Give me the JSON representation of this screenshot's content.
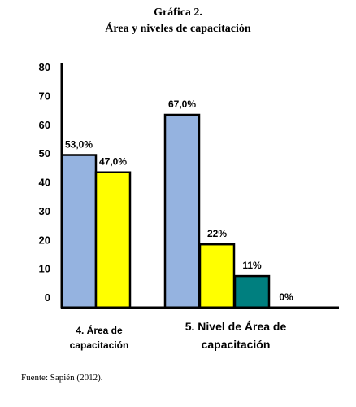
{
  "title_line1": "Gráfica 2.",
  "title_line2": "Área y niveles de capacitación",
  "source": "Fuente: Sapién (2012).",
  "colors": {
    "blue": "#95b3e0",
    "yellow": "#ffff00",
    "teal": "#007f7f",
    "outline": "#000000"
  },
  "chart_data": {
    "type": "bar",
    "title": "Área y niveles de capacitación",
    "categories": [
      "4. Área de capacitación",
      "5. Nivel de Área de capacitación"
    ],
    "ylim": [
      0,
      80
    ],
    "yticks": [
      0,
      10,
      20,
      30,
      40,
      50,
      60,
      70,
      80
    ],
    "ytick_labels": [
      "0",
      "10",
      "20",
      "30",
      "40",
      "50",
      "60",
      "70",
      "80"
    ],
    "grid": false,
    "legend": "none",
    "bars": [
      {
        "category": 0,
        "value": 53.0,
        "label": "53,0%",
        "color": "#95b3e0"
      },
      {
        "category": 0,
        "value": 47.0,
        "label": "47,0%",
        "color": "#ffff00"
      },
      {
        "category": 1,
        "value": 67.0,
        "label": "67,0%",
        "color": "#95b3e0"
      },
      {
        "category": 1,
        "value": 22.0,
        "label": "22%",
        "color": "#ffff00"
      },
      {
        "category": 1,
        "value": 11.0,
        "label": "11%",
        "color": "#007f7f"
      },
      {
        "category": 1,
        "value": 0.0,
        "label": "0%",
        "color": "#007f7f"
      }
    ]
  }
}
